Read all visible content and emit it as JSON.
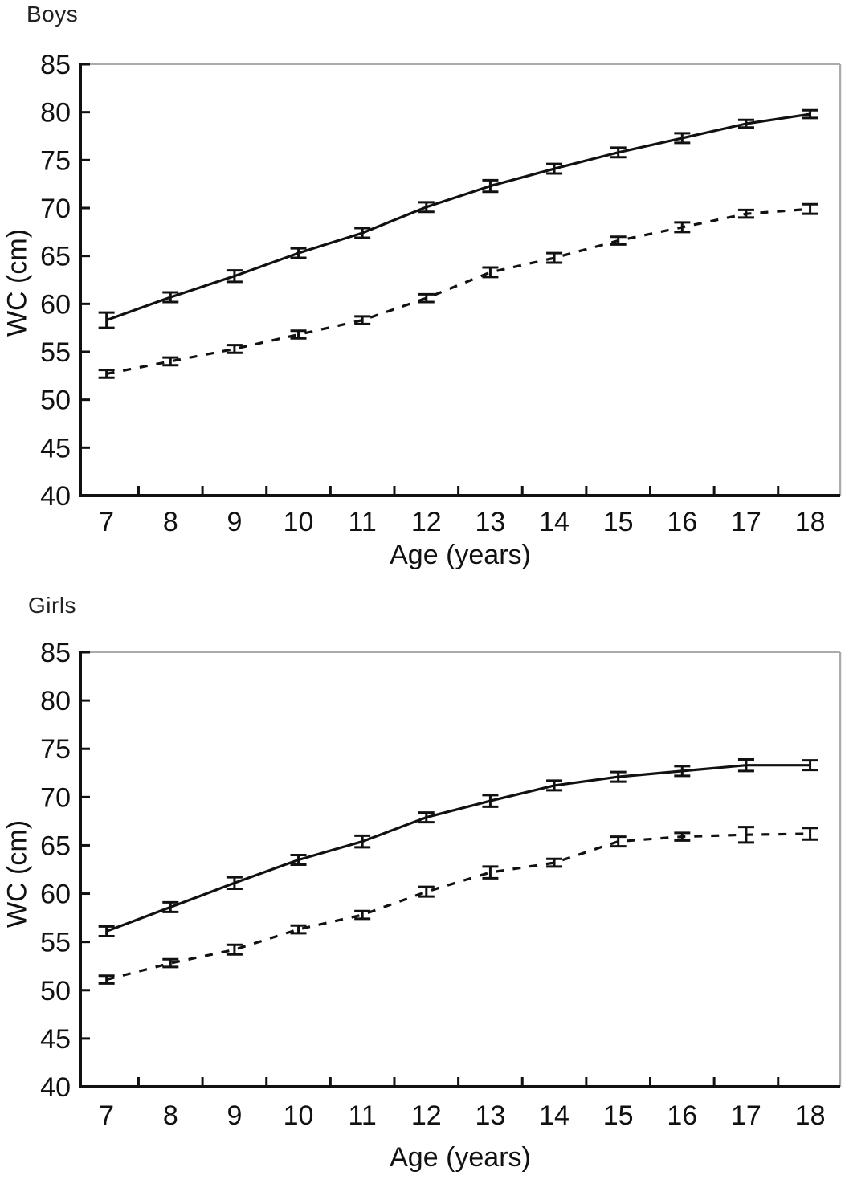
{
  "figure": {
    "description_titles": [
      "Boys",
      "Girls"
    ]
  },
  "colors": {
    "line": "#111111",
    "text": "#111111",
    "title_text": "#222222",
    "frame_gray": "#ababab",
    "background": "#ffffff"
  },
  "chart_data": [
    {
      "type": "line",
      "title": "Boys",
      "xlabel": "Age (years)",
      "ylabel": "WC (cm)",
      "x": [
        7,
        8,
        9,
        10,
        11,
        12,
        13,
        14,
        15,
        16,
        17,
        18
      ],
      "xlim": [
        6.59,
        18.47
      ],
      "ylim": [
        40,
        85
      ],
      "ytick_values": [
        40,
        45,
        50,
        55,
        60,
        65,
        70,
        75,
        80,
        85
      ],
      "xtick_marks_between_labels": true,
      "grid": false,
      "legend": null,
      "error_bars": true,
      "series": [
        {
          "name": "solid-line-series",
          "style": "solid",
          "values": [
            58.3,
            60.7,
            62.9,
            65.3,
            67.4,
            70.1,
            72.3,
            74.1,
            75.8,
            77.3,
            78.8,
            79.8
          ],
          "errors": [
            0.8,
            0.5,
            0.6,
            0.5,
            0.5,
            0.5,
            0.6,
            0.5,
            0.5,
            0.5,
            0.4,
            0.4
          ]
        },
        {
          "name": "dashed-line-series",
          "style": "dashed",
          "values": [
            52.7,
            54.0,
            55.3,
            56.8,
            58.3,
            60.6,
            63.3,
            64.8,
            66.6,
            68.0,
            69.4,
            69.9
          ],
          "errors": [
            0.4,
            0.4,
            0.4,
            0.4,
            0.4,
            0.4,
            0.5,
            0.5,
            0.4,
            0.5,
            0.4,
            0.5
          ]
        }
      ]
    },
    {
      "type": "line",
      "title": "Girls",
      "xlabel": "Age (years)",
      "ylabel": "WC (cm)",
      "x": [
        7,
        8,
        9,
        10,
        11,
        12,
        13,
        14,
        15,
        16,
        17,
        18
      ],
      "xlim": [
        6.59,
        18.47
      ],
      "ylim": [
        40,
        85
      ],
      "ytick_values": [
        40,
        45,
        50,
        55,
        60,
        65,
        70,
        75,
        80,
        85
      ],
      "xtick_marks_between_labels": true,
      "grid": false,
      "legend": null,
      "error_bars": true,
      "series": [
        {
          "name": "solid-line-series",
          "style": "solid",
          "values": [
            56.1,
            58.6,
            61.1,
            63.5,
            65.4,
            67.9,
            69.6,
            71.2,
            72.1,
            72.7,
            73.3,
            73.3
          ],
          "errors": [
            0.5,
            0.5,
            0.6,
            0.5,
            0.6,
            0.5,
            0.6,
            0.5,
            0.5,
            0.5,
            0.6,
            0.5
          ]
        },
        {
          "name": "dashed-line-series",
          "style": "dashed",
          "values": [
            51.1,
            52.8,
            54.2,
            56.3,
            57.8,
            60.2,
            62.2,
            63.2,
            65.4,
            65.9,
            66.1,
            66.2
          ],
          "errors": [
            0.4,
            0.4,
            0.5,
            0.4,
            0.4,
            0.5,
            0.6,
            0.4,
            0.5,
            0.4,
            0.8,
            0.6
          ]
        }
      ]
    }
  ]
}
